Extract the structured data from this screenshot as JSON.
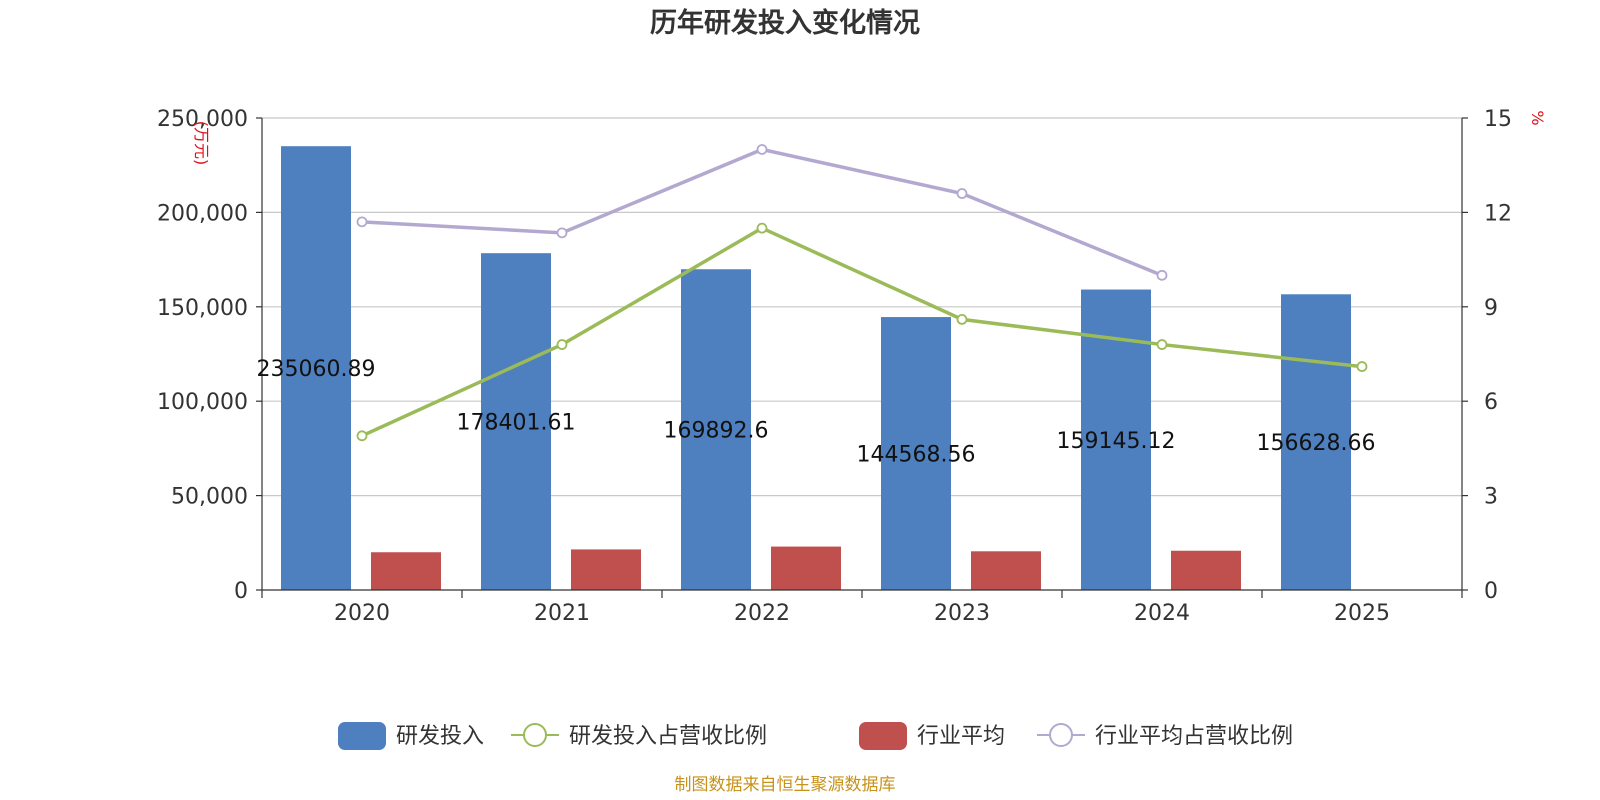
{
  "chart_data": {
    "type": "bar",
    "title": "历年研发投入变化情况",
    "categories": [
      "2020",
      "2021",
      "2022",
      "2023",
      "2024",
      "2025"
    ],
    "y_left": {
      "unit": "(万元)",
      "range": [
        0,
        250000
      ],
      "ticks": [
        0,
        50000,
        100000,
        150000,
        200000,
        250000
      ],
      "tick_labels": [
        "0",
        "50,000",
        "100,000",
        "150,000",
        "200,000",
        "250,000"
      ]
    },
    "y_right": {
      "unit": "%",
      "range": [
        0,
        15
      ],
      "ticks": [
        0,
        3,
        6,
        9,
        12,
        15
      ],
      "tick_labels": [
        "0",
        "3",
        "6",
        "9",
        "12",
        "15"
      ]
    },
    "grid": true,
    "legend_position": "bottom-center",
    "series": [
      {
        "name": "研发投入",
        "kind": "bar",
        "axis": "left",
        "color": "#4e7fbf",
        "values": [
          235060.89,
          178401.61,
          169892.6,
          144568.56,
          159145.12,
          156628.66
        ],
        "data_labels": [
          "235060.89",
          "178401.61",
          "169892.6",
          "144568.56",
          "159145.12",
          "156628.66"
        ]
      },
      {
        "name": "研发投入占营收比例",
        "kind": "line",
        "axis": "right",
        "color": "#9bbb59",
        "values": [
          4.9,
          7.8,
          11.5,
          8.6,
          7.8,
          7.1
        ]
      },
      {
        "name": "行业平均",
        "kind": "bar",
        "axis": "left",
        "color": "#c0504d",
        "values": [
          20000,
          21500,
          23000,
          20500,
          20800,
          null
        ]
      },
      {
        "name": "行业平均占营收比例",
        "kind": "line",
        "axis": "right",
        "color": "#b3a8cf",
        "values": [
          11.7,
          11.35,
          14.0,
          12.6,
          10.0,
          null
        ]
      }
    ]
  },
  "source_note": "制图数据来自恒生聚源数据库"
}
